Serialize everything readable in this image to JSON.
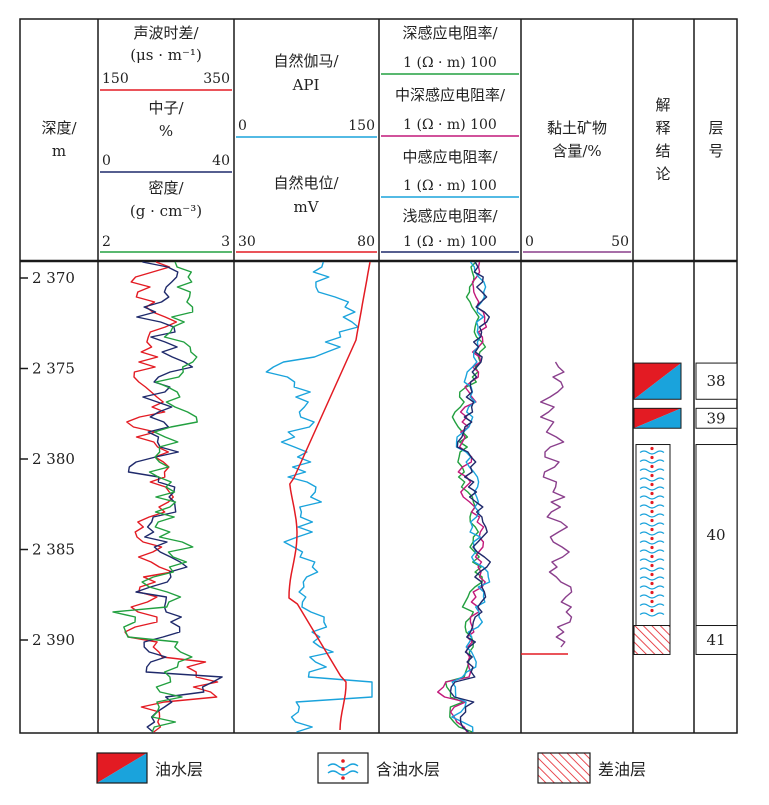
{
  "colors": {
    "frame": "#1a1a1a",
    "red": "#e31b23",
    "cyan": "#1aa3dc",
    "navy": "#1f2a6b",
    "green": "#22a040",
    "magenta": "#c2187a",
    "purple": "#8a3f8c"
  },
  "tracks": {
    "depth": {
      "title_line1": "深度/",
      "title_line2": "m"
    },
    "porosity": {
      "sonic_line1": "声波时差/",
      "sonic_line2": "(μs · m⁻¹)",
      "sonic_min": "150",
      "sonic_max": "350",
      "neutron_line1": "中子/",
      "neutron_line2": "%",
      "neutron_min": "0",
      "neutron_max": "40",
      "density_line1": "密度/",
      "density_line2": "(g · cm⁻³)",
      "density_min": "2",
      "density_max": "3"
    },
    "gr_sp": {
      "gr_line1": "自然伽马/",
      "gr_line2": "API",
      "gr_min": "0",
      "gr_max": "150",
      "sp_line1": "自然电位/",
      "sp_line2": "mV",
      "sp_min": "30",
      "sp_max": "80"
    },
    "resistivity": {
      "deep": "深感应电阻率/",
      "mid_deep": "中深感应电阻率/",
      "medium": "中感应电阻率/",
      "shallow": "浅感应电阻率/",
      "range_unit": "1 (Ω · m) 100"
    },
    "clay": {
      "title_line1": "黏土矿物",
      "title_line2": "含量/%",
      "min": "0",
      "max": "50"
    },
    "interp": {
      "c1": "解",
      "c2": "释",
      "c3": "结",
      "c4": "论"
    },
    "layer": {
      "c1": "层",
      "c2": "号"
    }
  },
  "depth_ticks": [
    "2 370",
    "2 375",
    "2 380",
    "2 385",
    "2 390"
  ],
  "layers": [
    {
      "number": "38",
      "top_m": 2374.7,
      "bottom_m": 2376.7,
      "interpretation": "oil-water"
    },
    {
      "number": "39",
      "top_m": 2377.2,
      "bottom_m": 2378.3,
      "interpretation": "oil-water"
    },
    {
      "number": "40",
      "top_m": 2379.2,
      "bottom_m": 2389.2,
      "interpretation": "oil-bearing-water"
    },
    {
      "number": "41",
      "top_m": 2389.2,
      "bottom_m": 2390.8,
      "interpretation": "poor-oil"
    }
  ],
  "legend": {
    "oil_water": "油水层",
    "oil_bearing_water": "含油水层",
    "poor_oil": "差油层"
  }
}
